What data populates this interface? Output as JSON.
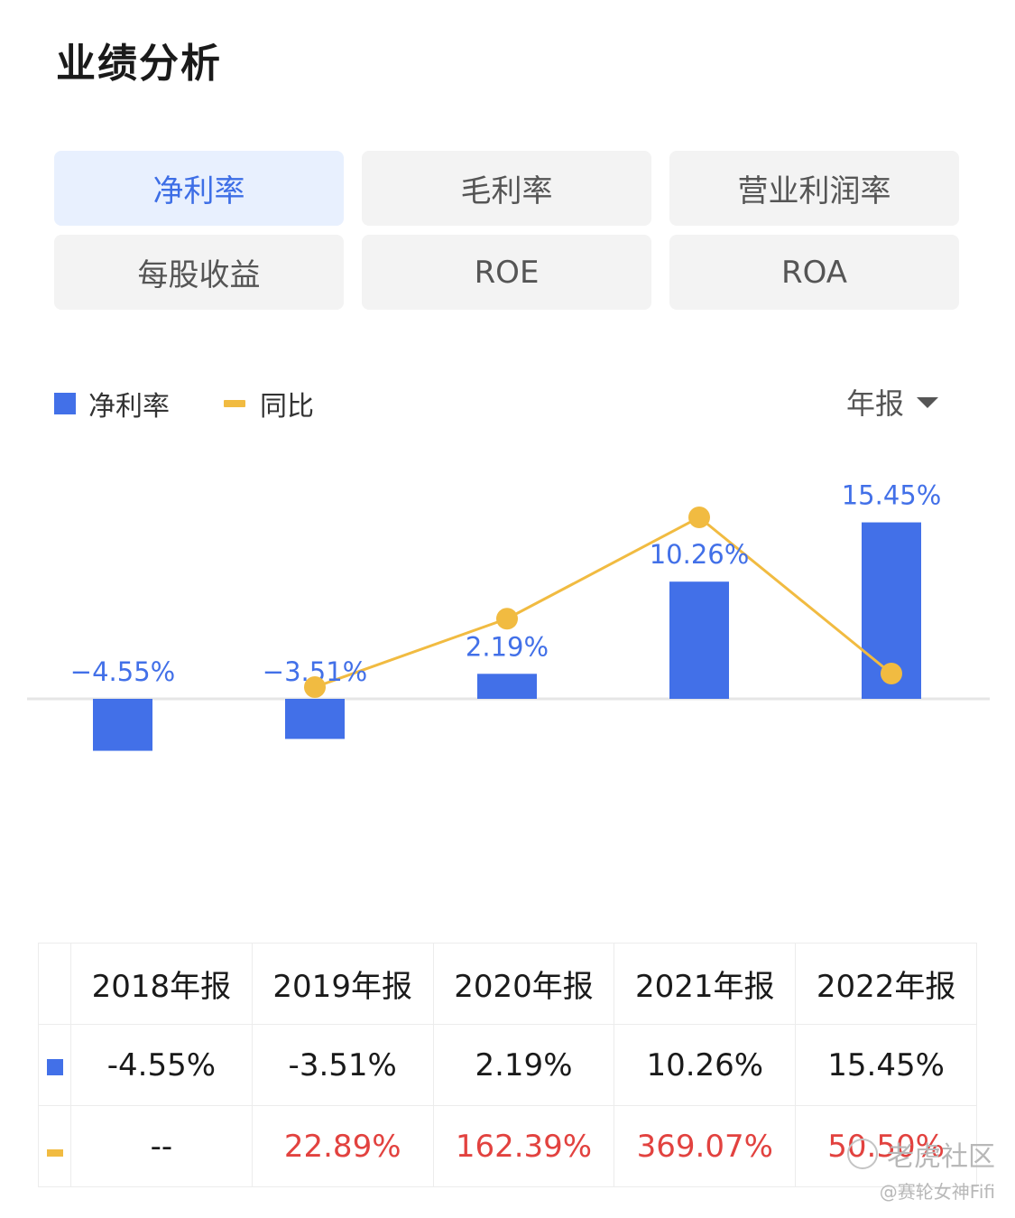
{
  "page_title": "业绩分析",
  "tabs": [
    {
      "label": "净利率",
      "active": true
    },
    {
      "label": "毛利率",
      "active": false
    },
    {
      "label": "营业利润率",
      "active": false
    },
    {
      "label": "每股收益",
      "active": false
    },
    {
      "label": "ROE",
      "active": false
    },
    {
      "label": "ROA",
      "active": false
    }
  ],
  "legend": {
    "bar_label": "净利率",
    "line_label": "同比"
  },
  "period_selector": {
    "label": "年报"
  },
  "colors": {
    "bar": "#4270e8",
    "line": "#f1bb41",
    "positive_text": "#e2423f",
    "bar_label": "#4270e8"
  },
  "chart_data": {
    "type": "bar",
    "categories": [
      "2018年报",
      "2019年报",
      "2020年报",
      "2021年报",
      "2022年报"
    ],
    "series": [
      {
        "name": "净利率",
        "type": "bar",
        "values": [
          -4.55,
          -3.51,
          2.19,
          10.26,
          15.45
        ],
        "labels": [
          "−4.55%",
          "−3.51%",
          "2.19%",
          "10.26%",
          "15.45%"
        ]
      },
      {
        "name": "同比",
        "type": "line",
        "values": [
          null,
          22.89,
          162.39,
          369.07,
          50.5
        ]
      }
    ]
  },
  "table": {
    "headers": [
      "2018年报",
      "2019年报",
      "2020年报",
      "2021年报",
      "2022年报"
    ],
    "net_margin_row": [
      "-4.55%",
      "-3.51%",
      "2.19%",
      "10.26%",
      "15.45%"
    ],
    "yoy_row": [
      "--",
      "22.89%",
      "162.39%",
      "369.07%",
      "50.50%"
    ]
  },
  "watermark": {
    "brand": "老虎社区",
    "user": "@赛轮女神Fifi"
  }
}
